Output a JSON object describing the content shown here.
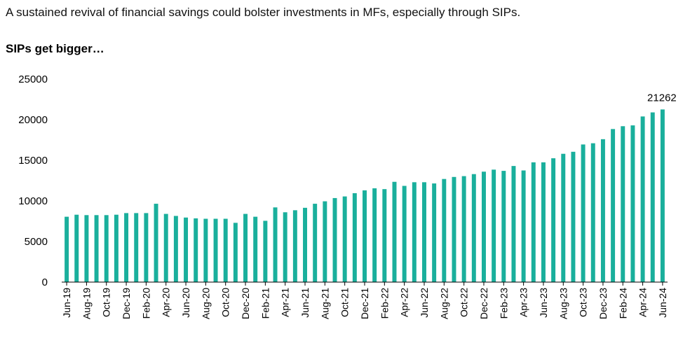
{
  "subtitle": "A sustained revival of financial savings could bolster investments in MFs, especially through SIPs.",
  "chart_title": "SIPs get bigger…",
  "colors": {
    "bar": "#1aaf9c",
    "axis": "#000000",
    "text": "#000000"
  },
  "chart_data": {
    "type": "bar",
    "title": "SIPs get bigger…",
    "xlabel": "",
    "ylabel": "",
    "ylim": [
      0,
      25000
    ],
    "yticks": [
      0,
      5000,
      10000,
      15000,
      20000,
      25000
    ],
    "grid": false,
    "legend": "none",
    "categories": [
      "Jun-19",
      "Jul-19",
      "Aug-19",
      "Sep-19",
      "Oct-19",
      "Nov-19",
      "Dec-19",
      "Jan-20",
      "Feb-20",
      "Mar-20",
      "Apr-20",
      "May-20",
      "Jun-20",
      "Jul-20",
      "Aug-20",
      "Sep-20",
      "Oct-20",
      "Nov-20",
      "Dec-20",
      "Jan-21",
      "Feb-21",
      "Mar-21",
      "Apr-21",
      "May-21",
      "Jun-21",
      "Jul-21",
      "Aug-21",
      "Sep-21",
      "Oct-21",
      "Nov-21",
      "Dec-21",
      "Jan-22",
      "Feb-22",
      "Mar-22",
      "Apr-22",
      "May-22",
      "Jun-22",
      "Jul-22",
      "Aug-22",
      "Sep-22",
      "Oct-22",
      "Nov-22",
      "Dec-22",
      "Jan-23",
      "Feb-23",
      "Mar-23",
      "Apr-23",
      "May-23",
      "Jun-23",
      "Jul-23",
      "Aug-23",
      "Sep-23",
      "Oct-23",
      "Nov-23",
      "Dec-23",
      "Jan-24",
      "Feb-24",
      "Mar-24",
      "Apr-24",
      "May-24",
      "Jun-24"
    ],
    "tick_labels": [
      "Jun-19",
      "Aug-19",
      "Oct-19",
      "Dec-19",
      "Feb-20",
      "Apr-20",
      "Jun-20",
      "Aug-20",
      "Oct-20",
      "Dec-20",
      "Feb-21",
      "Apr-21",
      "Jun-21",
      "Aug-21",
      "Oct-21",
      "Dec-21",
      "Feb-22",
      "Apr-22",
      "Jun-22",
      "Aug-22",
      "Oct-22",
      "Dec-22",
      "Feb-23",
      "Apr-23",
      "Jun-23",
      "Aug-23",
      "Oct-23",
      "Dec-23",
      "Feb-24",
      "Apr-24",
      "Jun-24"
    ],
    "values": [
      8050,
      8300,
      8250,
      8250,
      8250,
      8300,
      8500,
      8500,
      8500,
      9650,
      8400,
      8150,
      7950,
      7850,
      7800,
      7800,
      7800,
      7300,
      8400,
      8050,
      7550,
      9200,
      8600,
      8850,
      9150,
      9650,
      9950,
      10350,
      10550,
      10950,
      11300,
      11550,
      11450,
      12350,
      11850,
      12300,
      12300,
      12150,
      12700,
      12950,
      13050,
      13300,
      13600,
      13850,
      13700,
      14300,
      13750,
      14750,
      14750,
      15250,
      15800,
      16050,
      16950,
      17100,
      17600,
      18850,
      19200,
      19300,
      20400,
      20900,
      21262
    ],
    "data_labels": [
      {
        "category": "Jun-24",
        "text": "21262"
      }
    ]
  }
}
